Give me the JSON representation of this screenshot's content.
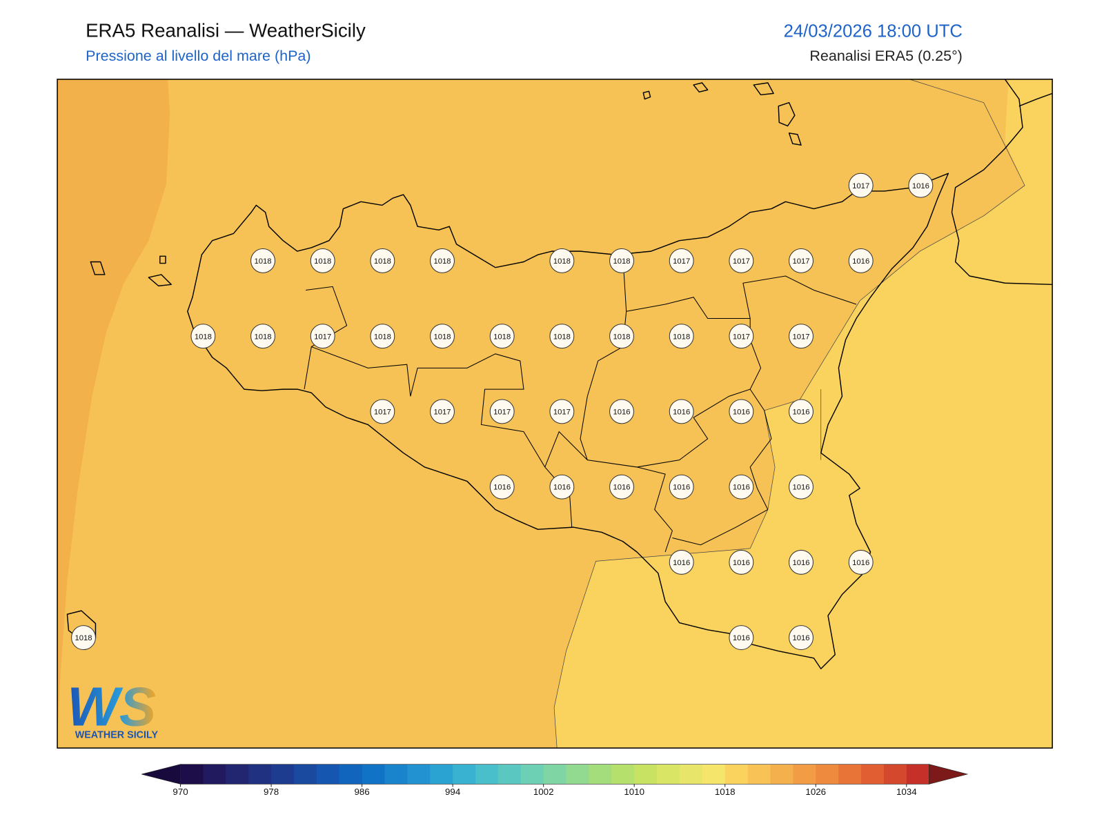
{
  "header": {
    "title": "ERA5 Reanalisi — WeatherSicily",
    "subtitle": "Pressione al livello del mare (hPa)",
    "date": "24/03/2026 18:00 UTC",
    "source": "Reanalisi ERA5 (0.25°)"
  },
  "stations": [
    1017,
    1016,
    1018,
    1018,
    1018,
    1018,
    1018,
    1018,
    1017,
    1017,
    1017,
    1016,
    1018,
    1018,
    1017,
    1018,
    1018,
    1018,
    1018,
    1018,
    1018,
    1017,
    1017,
    1017,
    1017,
    1017,
    1017,
    1016,
    1016,
    1016,
    1016,
    1016,
    1016,
    1016,
    1016,
    1016,
    1016,
    1016,
    1016,
    1016,
    1016,
    1018,
    1016,
    1016
  ],
  "colorbar": {
    "min": 970,
    "max": 1036,
    "ticks": [
      970,
      978,
      986,
      994,
      1002,
      1010,
      1018,
      1026,
      1034
    ],
    "colors": [
      "#1d0e4a",
      "#221a5e",
      "#222670",
      "#1f3180",
      "#1d3c8f",
      "#1a4aa0",
      "#1557b0",
      "#1265bd",
      "#1173c6",
      "#1983cc",
      "#2293d0",
      "#2ba3d2",
      "#38b2d0",
      "#48bfca",
      "#5ac8c0",
      "#6dcfb3",
      "#7fd5a3",
      "#91da90",
      "#a4dd7c",
      "#b6e06c",
      "#c8e263",
      "#d9e564",
      "#e8e66a",
      "#f5e56b",
      "#fad35f",
      "#f8c257",
      "#f5b04e",
      "#f29d45",
      "#ee8a3e",
      "#e87537",
      "#e05e31",
      "#d4482d",
      "#c53129"
    ],
    "under": "#180a3c",
    "over": "#7c1a1a"
  },
  "logo": {
    "mark": "WS",
    "text": "WEATHER SICILY"
  }
}
